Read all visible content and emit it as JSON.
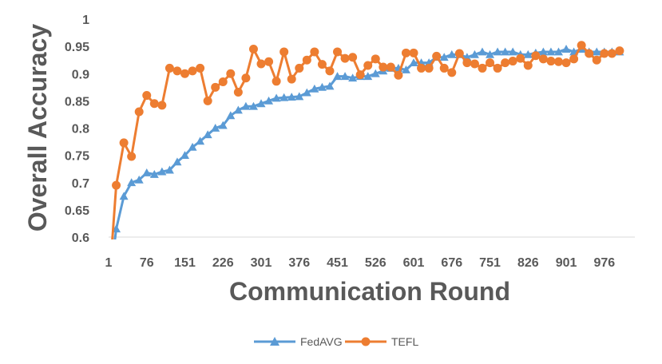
{
  "chart_data": {
    "type": "line",
    "title": "",
    "xlabel": "Communication Round",
    "ylabel": "Overall Accuracy",
    "xlim": [
      1,
      1036
    ],
    "ylim": [
      0.6,
      1.0
    ],
    "x_ticks": [
      1,
      76,
      151,
      226,
      301,
      376,
      451,
      526,
      601,
      676,
      751,
      826,
      901,
      976
    ],
    "y_ticks": [
      0.6,
      0.65,
      0.7,
      0.75,
      0.8,
      0.85,
      0.9,
      0.95,
      1
    ],
    "y_tick_labels": [
      "0.6",
      "0.65",
      "0.7",
      "0.75",
      "0.8",
      "0.85",
      "0.9",
      "0.95",
      "1"
    ],
    "grid": false,
    "legend_position": "bottom",
    "x": [
      1,
      16,
      31,
      46,
      61,
      76,
      91,
      106,
      121,
      136,
      151,
      166,
      181,
      196,
      211,
      226,
      241,
      256,
      271,
      286,
      301,
      316,
      331,
      346,
      361,
      376,
      391,
      406,
      421,
      436,
      451,
      466,
      481,
      496,
      511,
      526,
      541,
      556,
      571,
      586,
      601,
      616,
      631,
      646,
      661,
      676,
      691,
      706,
      721,
      736,
      751,
      766,
      781,
      796,
      811,
      826,
      841,
      856,
      871,
      886,
      901,
      916,
      931,
      946,
      961,
      976,
      991,
      1006
    ],
    "series": [
      {
        "name": "FedAVG",
        "color": "#5B9BD5",
        "marker": "triangle",
        "values": [
          0.5,
          0.615,
          0.675,
          0.7,
          0.705,
          0.718,
          0.715,
          0.72,
          0.723,
          0.738,
          0.75,
          0.765,
          0.776,
          0.788,
          0.8,
          0.805,
          0.823,
          0.833,
          0.84,
          0.84,
          0.845,
          0.85,
          0.855,
          0.856,
          0.857,
          0.858,
          0.865,
          0.872,
          0.875,
          0.877,
          0.895,
          0.895,
          0.892,
          0.895,
          0.895,
          0.9,
          0.905,
          0.91,
          0.91,
          0.907,
          0.92,
          0.92,
          0.92,
          0.93,
          0.93,
          0.935,
          0.935,
          0.93,
          0.935,
          0.94,
          0.935,
          0.94,
          0.94,
          0.94,
          0.935,
          0.935,
          0.938,
          0.94,
          0.94,
          0.94,
          0.945,
          0.94,
          0.945,
          0.94,
          0.94,
          0.94,
          0.94,
          0.94
        ]
      },
      {
        "name": "TEFL",
        "color": "#ED7D31",
        "marker": "circle",
        "values": [
          0.5,
          0.695,
          0.773,
          0.748,
          0.83,
          0.86,
          0.845,
          0.842,
          0.91,
          0.905,
          0.9,
          0.905,
          0.91,
          0.85,
          0.875,
          0.885,
          0.9,
          0.866,
          0.892,
          0.945,
          0.918,
          0.922,
          0.886,
          0.94,
          0.89,
          0.91,
          0.925,
          0.94,
          0.917,
          0.905,
          0.94,
          0.928,
          0.93,
          0.898,
          0.915,
          0.927,
          0.912,
          0.912,
          0.897,
          0.938,
          0.938,
          0.91,
          0.91,
          0.932,
          0.91,
          0.902,
          0.937,
          0.92,
          0.918,
          0.91,
          0.92,
          0.91,
          0.92,
          0.923,
          0.928,
          0.915,
          0.933,
          0.927,
          0.923,
          0.922,
          0.92,
          0.927,
          0.952,
          0.937,
          0.925,
          0.937,
          0.937,
          0.942
        ]
      }
    ]
  }
}
